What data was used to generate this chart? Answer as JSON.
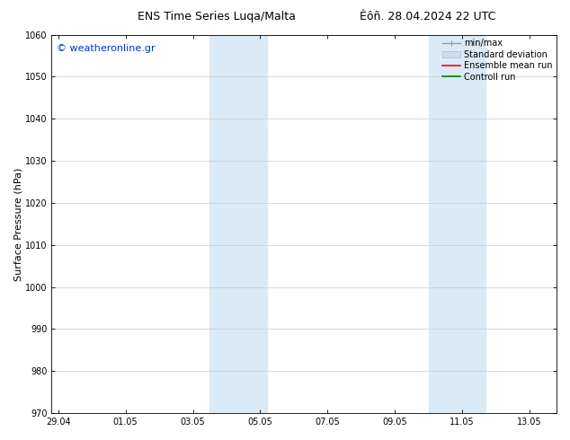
{
  "title_left": "ENS Time Series Luqa/Malta",
  "title_right": "Êôñ. 28.04.2024 22 UTC",
  "ylabel": "Surface Pressure (hPa)",
  "ylim": [
    970,
    1060
  ],
  "yticks": [
    970,
    980,
    990,
    1000,
    1010,
    1020,
    1030,
    1040,
    1050,
    1060
  ],
  "xtick_labels": [
    "29.04",
    "01.05",
    "03.05",
    "05.05",
    "07.05",
    "09.05",
    "11.05",
    "13.05"
  ],
  "xtick_positions": [
    0,
    2,
    4,
    6,
    8,
    10,
    12,
    14
  ],
  "xlim": [
    -0.2,
    14.8
  ],
  "shaded_regions": [
    {
      "x_start": 4.5,
      "x_end": 6.2
    },
    {
      "x_start": 11.0,
      "x_end": 12.7
    }
  ],
  "shaded_color": "#daeaf7",
  "watermark_text": "© weatheronline.gr",
  "watermark_color": "#0033cc",
  "legend_entries": [
    {
      "label": "min/max",
      "color": "#999999"
    },
    {
      "label": "Standard deviation",
      "color": "#ccddf0"
    },
    {
      "label": "Ensemble mean run",
      "color": "red"
    },
    {
      "label": "Controll run",
      "color": "green"
    }
  ],
  "background_color": "#ffffff",
  "grid_color": "#cccccc",
  "title_fontsize": 9,
  "axis_label_fontsize": 8,
  "tick_fontsize": 7,
  "legend_fontsize": 7,
  "watermark_fontsize": 8
}
